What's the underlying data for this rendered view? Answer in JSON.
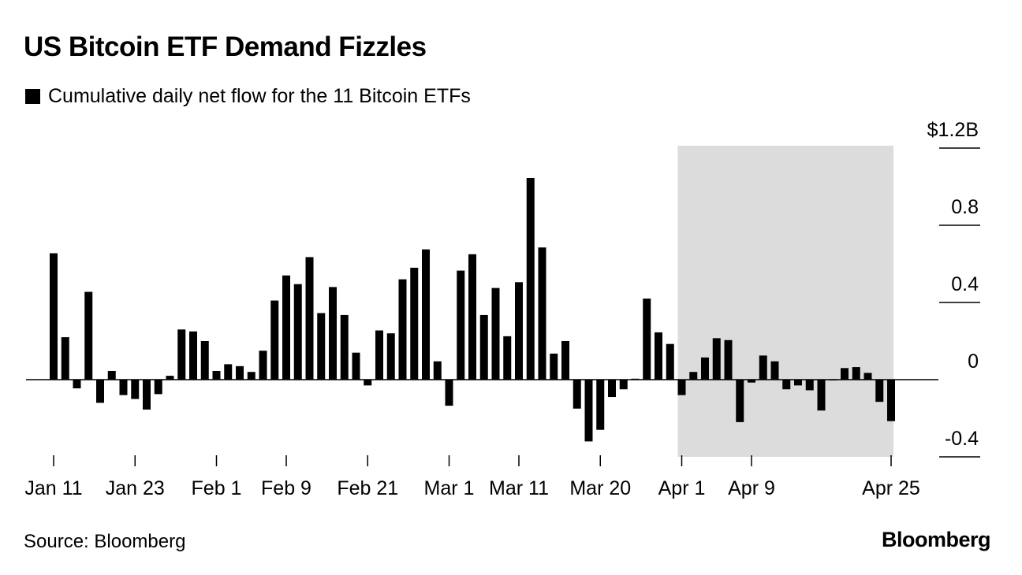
{
  "title": "US Bitcoin ETF Demand Fizzles",
  "legend_label": "Cumulative daily net flow for the 11 Bitcoin ETFs",
  "source": "Source: Bloomberg",
  "brand": "Bloomberg",
  "colors": {
    "bar": "#000000",
    "highlight": "#dcdcdc",
    "axis": "#000000"
  },
  "chart_data": {
    "type": "bar",
    "title": "US Bitcoin ETF Demand Fizzles",
    "series": [
      {
        "name": "Cumulative daily net flow for the 11 Bitcoin ETFs",
        "values": [
          0.655,
          0.22,
          -0.045,
          0.455,
          -0.12,
          0.045,
          -0.08,
          -0.1,
          -0.155,
          -0.075,
          0.02,
          0.26,
          0.25,
          0.2,
          0.045,
          0.08,
          0.07,
          0.04,
          0.15,
          0.41,
          0.54,
          0.495,
          0.635,
          0.345,
          0.48,
          0.335,
          0.14,
          -0.03,
          0.255,
          0.24,
          0.52,
          0.58,
          0.675,
          0.095,
          -0.135,
          0.565,
          0.65,
          0.335,
          0.475,
          0.225,
          0.505,
          1.045,
          0.685,
          0.135,
          0.2,
          -0.15,
          -0.32,
          -0.26,
          -0.09,
          -0.05,
          0.005,
          0.42,
          0.245,
          0.185,
          -0.08,
          0.04,
          0.115,
          0.215,
          0.205,
          -0.22,
          -0.015,
          0.125,
          0.095,
          -0.05,
          -0.03,
          -0.055,
          -0.16,
          0.0,
          0.06,
          0.065,
          0.035,
          -0.115,
          -0.215
        ]
      }
    ],
    "y_ticks": [
      {
        "value": 1.2,
        "label": "$1.2B"
      },
      {
        "value": 0.8,
        "label": "0.8"
      },
      {
        "value": 0.4,
        "label": "0.4"
      },
      {
        "value": 0.0,
        "label": "0"
      },
      {
        "value": -0.4,
        "label": "-0.4"
      }
    ],
    "x_ticks": [
      {
        "index": 0,
        "label": "Jan 11"
      },
      {
        "index": 7,
        "label": "Jan 23"
      },
      {
        "index": 14,
        "label": "Feb 1"
      },
      {
        "index": 20,
        "label": "Feb 9"
      },
      {
        "index": 27,
        "label": "Feb 21"
      },
      {
        "index": 34,
        "label": "Mar 1"
      },
      {
        "index": 40,
        "label": "Mar 11"
      },
      {
        "index": 47,
        "label": "Mar 20"
      },
      {
        "index": 54,
        "label": "Apr 1"
      },
      {
        "index": 60,
        "label": "Apr 9"
      },
      {
        "index": 72,
        "label": "Apr 25"
      }
    ],
    "ylim": [
      -0.4,
      1.2
    ],
    "highlight_range": [
      "Apr 1",
      "Apr 25"
    ],
    "legend_position": "top-left",
    "grid": false
  }
}
